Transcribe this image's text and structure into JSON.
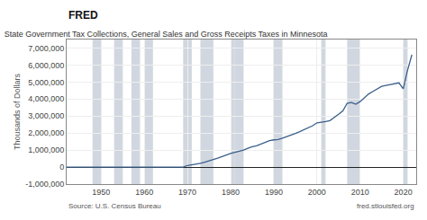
{
  "chart_data": {
    "type": "line",
    "title": "State Government Tax Collections, General Sales and Gross Receipts Taxes in Minnesota",
    "ylabel": "Thousands of Dollars",
    "annotations": [
      "FRED",
      "Source: U.S. Census Bureau",
      "fred.stlouisfed.org"
    ],
    "color": "#3a5f8a",
    "grid": true,
    "xlim": [
      1942,
      2023
    ],
    "ylim": [
      -1000000,
      7500000
    ],
    "xticks": [
      1950,
      1960,
      1970,
      1980,
      1990,
      2000,
      2010,
      2020
    ],
    "yticks": [
      {
        "value": -1000000,
        "label": "-1,000,000"
      },
      0,
      {
        "value": 1000000,
        "label": "1,000,000"
      },
      {
        "value": 2000000,
        "label": "2,000,000"
      },
      {
        "value": 3000000,
        "label": "3,000,000"
      },
      {
        "value": 4000000,
        "label": "4,000,000"
      },
      {
        "value": 5000000,
        "label": "5,000,000"
      },
      {
        "value": 6000000,
        "label": "6,000,000"
      },
      {
        "value": 7000000,
        "label": "7,000,000"
      }
    ],
    "shaded_regions": [
      [
        1948,
        1950
      ],
      [
        1953,
        1955
      ],
      [
        1957,
        1959
      ],
      [
        1960,
        1962
      ],
      [
        1969,
        1971
      ],
      [
        1973,
        1976
      ],
      [
        1980,
        1981
      ],
      [
        1981,
        1983
      ],
      [
        1990,
        1992
      ],
      [
        2001,
        2002
      ],
      [
        2007,
        2010
      ],
      [
        2020,
        2021
      ]
    ],
    "x": [
      1942,
      1943,
      1944,
      1945,
      1946,
      1947,
      1948,
      1949,
      1950,
      1951,
      1952,
      1953,
      1954,
      1955,
      1956,
      1957,
      1958,
      1959,
      1960,
      1961,
      1962,
      1963,
      1964,
      1965,
      1966,
      1967,
      1968,
      1969,
      1970,
      1971,
      1972,
      1973,
      1974,
      1975,
      1976,
      1977,
      1978,
      1979,
      1980,
      1981,
      1982,
      1983,
      1984,
      1985,
      1986,
      1987,
      1988,
      1989,
      1990,
      1991,
      1992,
      1993,
      1994,
      1995,
      1996,
      1997,
      1998,
      1999,
      2000,
      2001,
      2002,
      2003,
      2004,
      2005,
      2006,
      2007,
      2008,
      2009,
      2010,
      2011,
      2012,
      2013,
      2014,
      2015,
      2016,
      2017,
      2018,
      2019,
      2020,
      2021,
      2022
    ],
    "values": [
      0,
      0,
      0,
      0,
      0,
      0,
      0,
      0,
      0,
      0,
      0,
      0,
      0,
      0,
      0,
      0,
      0,
      0,
      0,
      0,
      0,
      0,
      0,
      0,
      0,
      0,
      0,
      0,
      95000,
      130000,
      170000,
      220000,
      290000,
      360000,
      450000,
      530000,
      620000,
      720000,
      800000,
      870000,
      930000,
      1000000,
      1100000,
      1200000,
      1250000,
      1350000,
      1450000,
      1550000,
      1600000,
      1620000,
      1700000,
      1780000,
      1880000,
      1980000,
      2080000,
      2200000,
      2320000,
      2430000,
      2600000,
      2620000,
      2680000,
      2730000,
      2900000,
      3100000,
      3300000,
      3750000,
      3800000,
      3700000,
      3850000,
      4100000,
      4300000,
      4450000,
      4600000,
      4750000,
      4800000,
      4850000,
      4900000,
      4950000,
      4600000,
      5700000,
      6600000
    ]
  }
}
